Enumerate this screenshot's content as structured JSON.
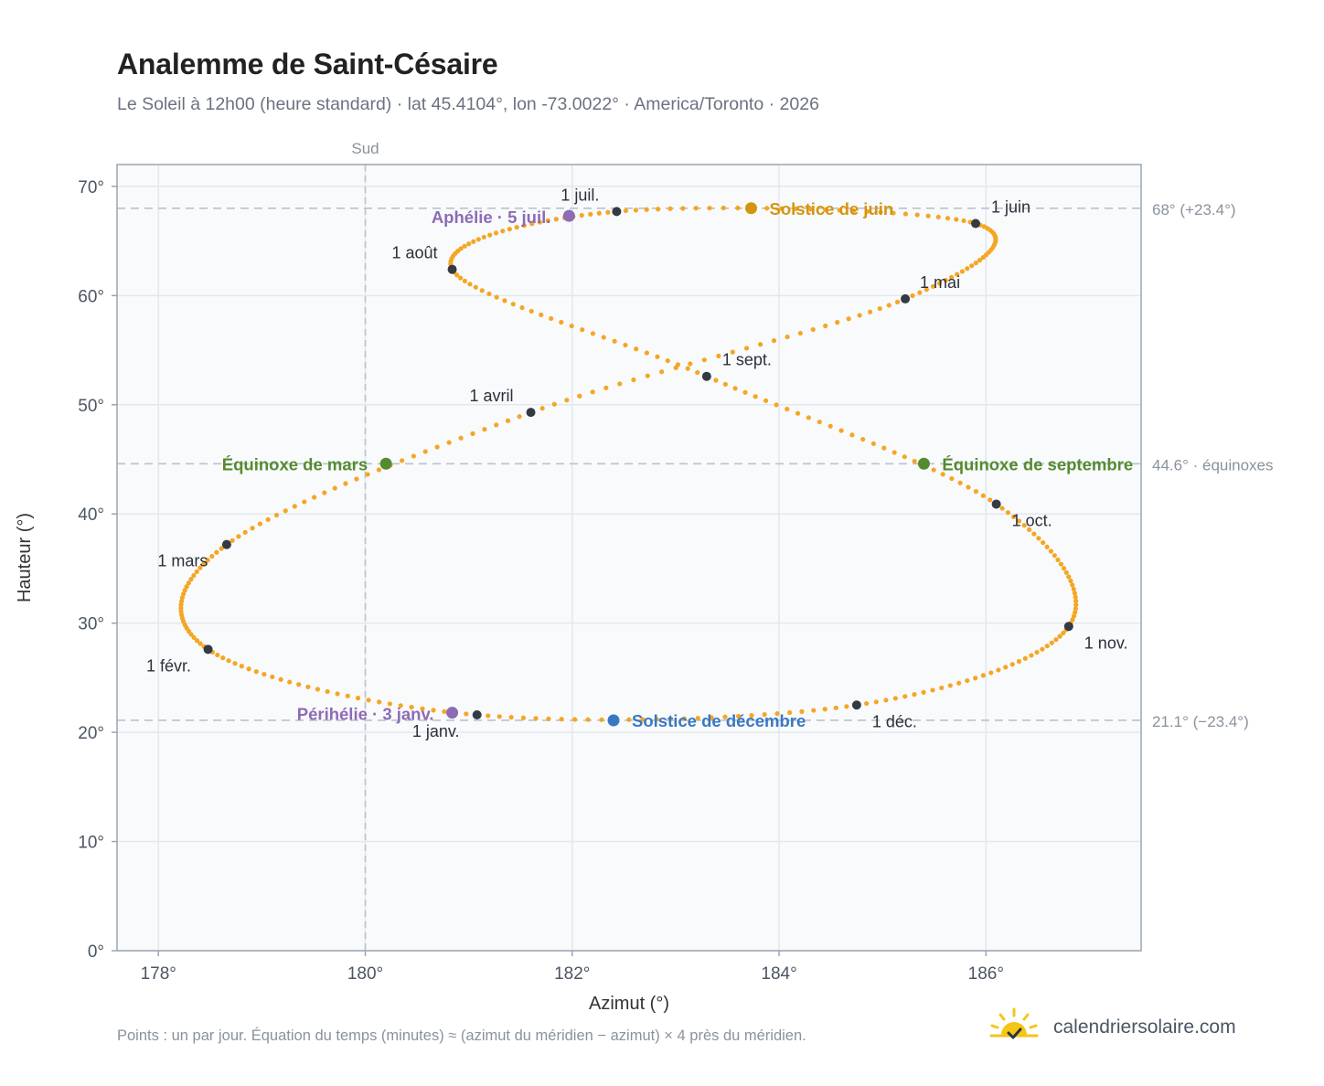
{
  "title": "Analemme de Saint-Césaire",
  "subtitle": "Le Soleil à 12h00 (heure standard) · lat 45.4104°, lon -73.0022° · America/Toronto · 2026",
  "footnote": "Points : un par jour. Équation du temps (minutes) ≈ (azimut du méridien − azimut) × 4 près du méridien.",
  "brand": {
    "text": "calendriersolaire.com",
    "icon": "sun-check-icon"
  },
  "colors": {
    "trail": "#f5a623",
    "month_marker": "#333a44",
    "solstice_june": "#d4950f",
    "solstice_december": "#3a78c2",
    "equinox": "#558b2f",
    "apsis": "#8e6bb5",
    "reference_line": "#b9c3cd",
    "plot_background": "#f8fafc",
    "plot_border": "#9aa6b2"
  },
  "chart_data": {
    "type": "scatter",
    "xlabel": "Azimut (°)",
    "ylabel": "Hauteur (°)",
    "xlim": [
      177.6,
      187.5
    ],
    "ylim": [
      0,
      72
    ],
    "x_ticks": [
      {
        "value": 178,
        "label": "178°"
      },
      {
        "value": 180,
        "label": "180°"
      },
      {
        "value": 182,
        "label": "182°"
      },
      {
        "value": 184,
        "label": "184°"
      },
      {
        "value": 186,
        "label": "186°"
      }
    ],
    "y_ticks": [
      {
        "value": 0,
        "label": "0°"
      },
      {
        "value": 10,
        "label": "10°"
      },
      {
        "value": 20,
        "label": "20°"
      },
      {
        "value": 30,
        "label": "30°"
      },
      {
        "value": 40,
        "label": "40°"
      },
      {
        "value": 50,
        "label": "50°"
      },
      {
        "value": 60,
        "label": "60°"
      },
      {
        "value": 70,
        "label": "70°"
      }
    ],
    "grid": true,
    "meridian": {
      "x": 180,
      "label": "Sud"
    },
    "reference_lines": [
      {
        "y": 68.0,
        "label": "68° (+23.4°)"
      },
      {
        "y": 44.6,
        "label": "44.6° · équinoxes"
      },
      {
        "y": 21.1,
        "label": "21.1° (−23.4°)"
      }
    ],
    "month_points": [
      {
        "label": "1 janv.",
        "x": 181.08,
        "y": 21.6,
        "anchor": "middle",
        "dx": -45,
        "dy": 24
      },
      {
        "label": "1 févr.",
        "x": 178.48,
        "y": 27.6,
        "anchor": "middle",
        "dx": -43,
        "dy": 24
      },
      {
        "label": "1 mars",
        "x": 178.66,
        "y": 37.2,
        "anchor": "middle",
        "dx": -48,
        "dy": 24
      },
      {
        "label": "1 avril",
        "x": 181.6,
        "y": 49.3,
        "anchor": "middle",
        "dx": -43,
        "dy": -12
      },
      {
        "label": "1 mai",
        "x": 185.22,
        "y": 59.7,
        "anchor": "start",
        "dx": 16,
        "dy": -12
      },
      {
        "label": "1 juin",
        "x": 185.9,
        "y": 66.6,
        "anchor": "start",
        "dx": 17,
        "dy": -12
      },
      {
        "label": "1 juil.",
        "x": 182.43,
        "y": 67.7,
        "anchor": "middle",
        "dx": -40,
        "dy": -12
      },
      {
        "label": "1 août",
        "x": 180.84,
        "y": 62.4,
        "anchor": "end",
        "dx": -16,
        "dy": -12
      },
      {
        "label": "1 sept.",
        "x": 183.3,
        "y": 52.6,
        "anchor": "start",
        "dx": 17,
        "dy": -12
      },
      {
        "label": "1 oct.",
        "x": 186.1,
        "y": 40.9,
        "anchor": "start",
        "dx": 17,
        "dy": 24
      },
      {
        "label": "1 nov.",
        "x": 186.8,
        "y": 29.7,
        "anchor": "start",
        "dx": 17,
        "dy": 24
      },
      {
        "label": "1 déc.",
        "x": 184.75,
        "y": 22.5,
        "anchor": "start",
        "dx": 17,
        "dy": 24
      }
    ],
    "special_points": [
      {
        "label": "Solstice de juin",
        "x": 183.73,
        "y": 68.0,
        "color_key": "solstice_june",
        "anchor": "start",
        "dx": 20,
        "dy": 7
      },
      {
        "label": "Aphélie · 5 juil.",
        "x": 181.97,
        "y": 67.3,
        "color_key": "apsis",
        "anchor": "end",
        "dx": -20,
        "dy": 8
      },
      {
        "label": "Équinoxe de mars",
        "x": 180.2,
        "y": 44.6,
        "color_key": "equinox",
        "anchor": "end",
        "dx": -20,
        "dy": 7
      },
      {
        "label": "Équinoxe de septembre",
        "x": 185.4,
        "y": 44.6,
        "color_key": "equinox",
        "anchor": "start",
        "dx": 20,
        "dy": 7
      },
      {
        "label": "Solstice de décembre",
        "x": 182.4,
        "y": 21.1,
        "color_key": "solstice_december",
        "anchor": "start",
        "dx": 20,
        "dy": 7
      },
      {
        "label": "Périhélie · 3 janv.",
        "x": 180.84,
        "y": 21.8,
        "color_key": "apsis",
        "anchor": "end",
        "dx": -20,
        "dy": 8
      }
    ],
    "trail_days": 365
  }
}
